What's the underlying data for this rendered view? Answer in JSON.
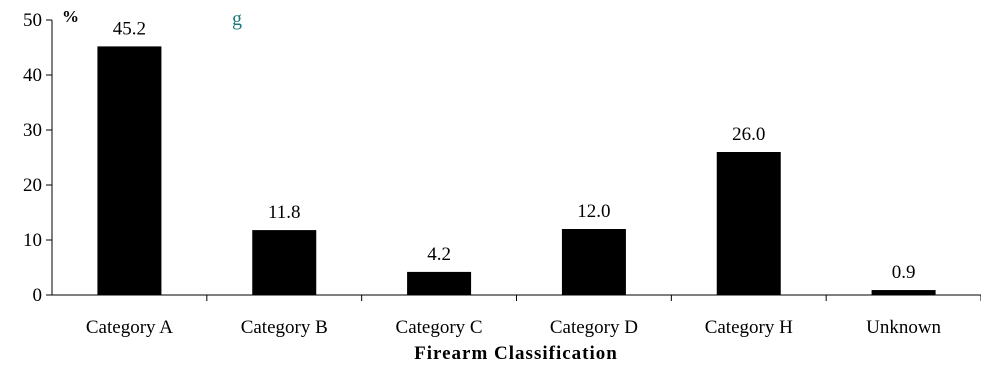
{
  "chart_data": {
    "type": "bar",
    "title": "",
    "title_fragment": "g",
    "unit_label": "%",
    "xlabel": "Firearm Classification",
    "ylabel": "",
    "categories": [
      "Category A",
      "Category B",
      "Category C",
      "Category D",
      "Category H",
      "Unknown"
    ],
    "values": [
      45.2,
      11.8,
      4.2,
      12.0,
      26.0,
      0.9
    ],
    "value_labels": [
      "45.2",
      "11.8",
      "4.2",
      "12.0",
      "26.0",
      "0.9"
    ],
    "ylim": [
      0,
      50
    ],
    "yticks": [
      0,
      10,
      20,
      30,
      40,
      50
    ],
    "ytick_labels": [
      "0",
      "10",
      "20",
      "30",
      "40",
      "50"
    ],
    "grid": false,
    "legend": "none",
    "bar_color": "#000000",
    "title_color": "#1a7a7a"
  }
}
